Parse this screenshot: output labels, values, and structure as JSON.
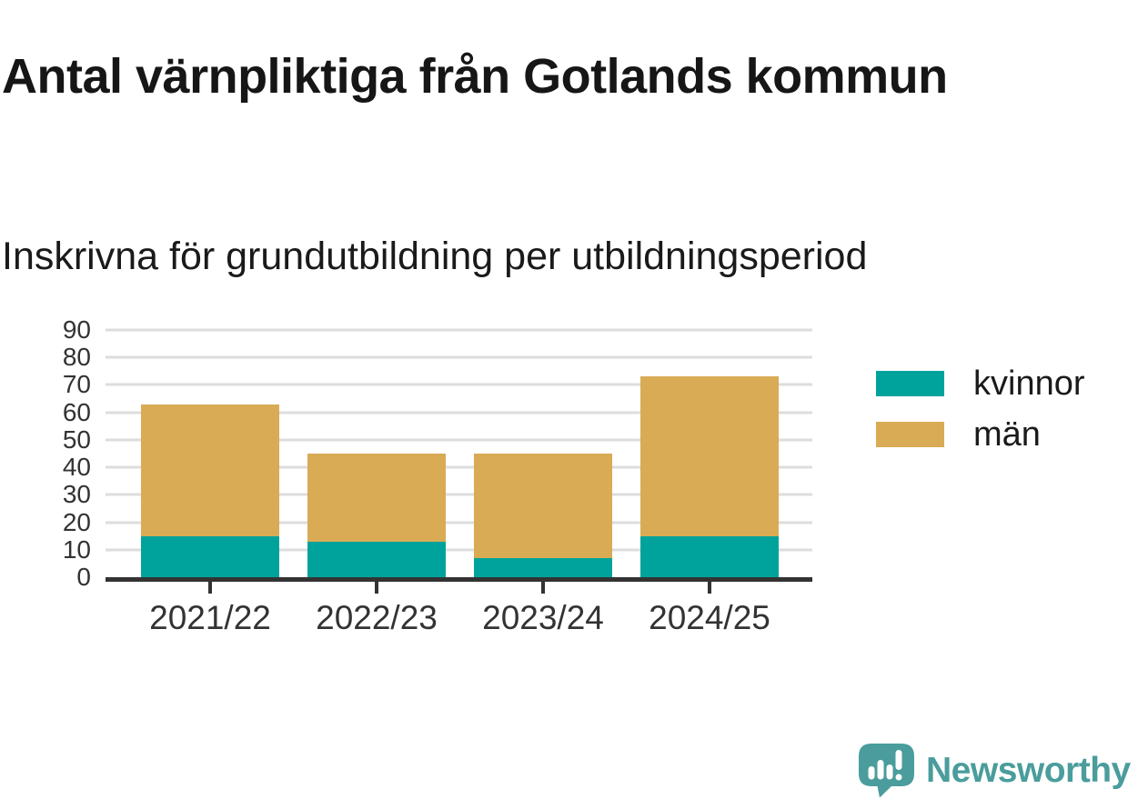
{
  "chart_data": {
    "type": "bar",
    "stacked": true,
    "title": "Antal värnpliktiga från Gotlands kommun",
    "subtitle": "Inskrivna för grundutbildning per utbildningsperiod",
    "categories": [
      "2021/22",
      "2022/23",
      "2023/24",
      "2024/25"
    ],
    "series": [
      {
        "name": "kvinnor",
        "color": "#00A39B",
        "values": [
          15,
          13,
          7,
          15
        ]
      },
      {
        "name": "män",
        "color": "#D9AB55",
        "values": [
          48,
          32,
          38,
          58
        ]
      }
    ],
    "stack_totals": [
      63,
      45,
      45,
      73
    ],
    "ylim": [
      0,
      90
    ],
    "yticks": [
      0,
      10,
      20,
      30,
      40,
      50,
      60,
      70,
      80,
      90
    ],
    "xlabel": "",
    "ylabel": "",
    "grid": "horizontal",
    "legend_position": "right"
  },
  "colors": {
    "kvinnor": "#00A39B",
    "man": "#D9AB55",
    "gridline": "#DDDDDD",
    "axis": "#333333",
    "title_text": "#161616",
    "label_text": "#333333",
    "brand_teal": "#4A9D9C"
  },
  "branding": {
    "logo_text": "Newsworthy",
    "logo_icon": "speech-bubble-bar-chart-exclamation"
  }
}
